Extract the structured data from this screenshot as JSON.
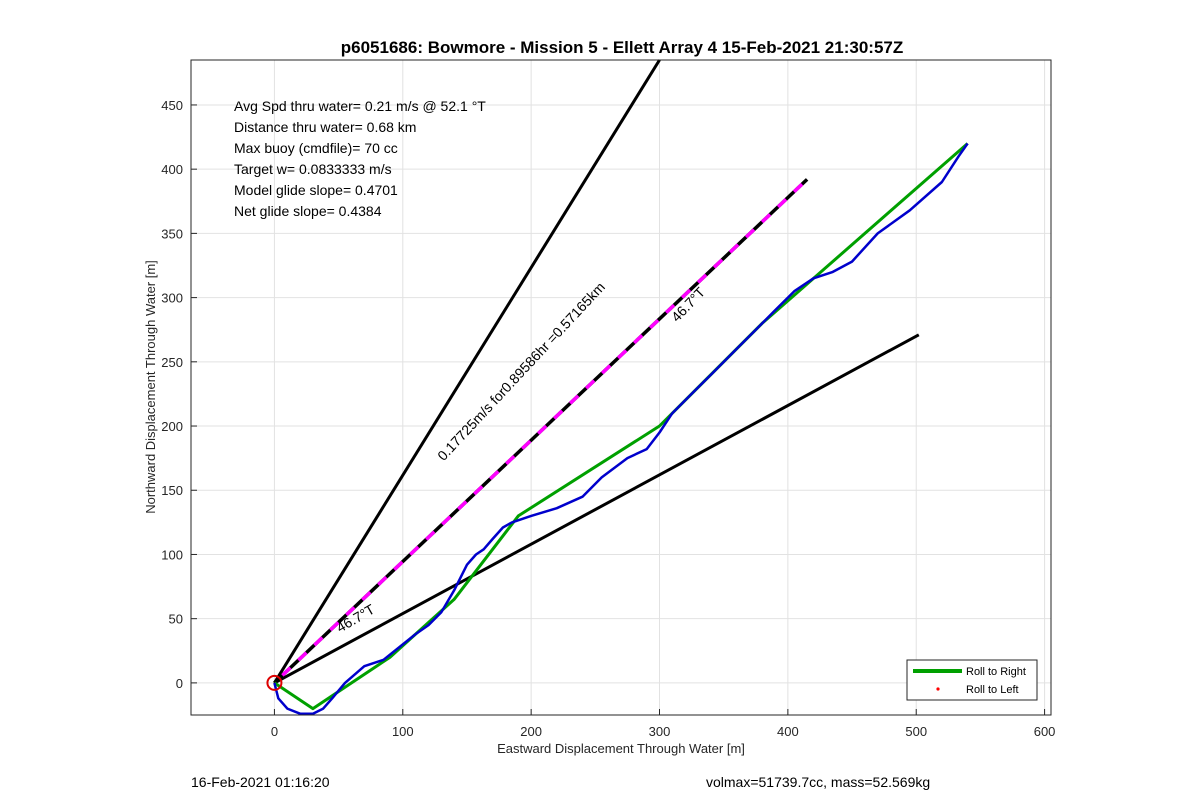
{
  "chart_data": {
    "type": "line",
    "title": "p6051686: Bowmore - Mission 5 - Ellett Array 4 15-Feb-2021 21:30:57Z",
    "xlabel": "Eastward Displacement Through Water [m]",
    "ylabel": "Northward Displacement Through Water [m]",
    "xlim": [
      -65,
      605
    ],
    "ylim": [
      -25,
      485
    ],
    "xticks": [
      0,
      100,
      200,
      300,
      400,
      500,
      600
    ],
    "yticks": [
      0,
      50,
      100,
      150,
      200,
      250,
      300,
      350,
      400,
      450
    ],
    "xtick_labels": [
      "0",
      "100",
      "200",
      "300",
      "400",
      "500",
      "600"
    ],
    "ytick_labels": [
      "0",
      "50",
      "100",
      "150",
      "200",
      "250",
      "300",
      "350",
      "400",
      "450"
    ],
    "grid": true,
    "annotations": [
      "Avg Spd thru water=  0.21 m/s @  52.1 °T",
      "Distance thru water=  0.68 km",
      "Max buoy (cmdfile)= 70 cc",
      "Target w= 0.0833333 m/s",
      "Model glide slope= 0.4701",
      "Net glide slope= 0.4384"
    ],
    "line_labels": {
      "upper_heading": "46.7°T",
      "lower_heading": "46.7°T",
      "current": "0.17725m/s for0.89586hr =0.57165km"
    },
    "series": [
      {
        "name": "Roll to Right",
        "color": "#00a000",
        "x": [
          0,
          30,
          90,
          140,
          190,
          300,
          380,
          540
        ],
        "y": [
          0,
          -20,
          20,
          65,
          130,
          200,
          280,
          420
        ]
      },
      {
        "name": "Roll to Left",
        "color": "#ff0000",
        "x": [],
        "y": []
      },
      {
        "color": "#0000cc",
        "x": [
          0,
          3,
          10,
          20,
          30,
          38,
          45,
          55,
          70,
          85,
          100,
          110,
          120,
          130,
          140,
          150,
          157,
          163,
          170,
          178,
          185,
          200,
          220,
          240,
          255,
          275,
          290,
          300,
          310,
          325,
          340,
          360,
          375,
          390,
          405,
          420,
          435,
          450,
          470,
          495,
          520,
          533,
          540
        ],
        "y": [
          0,
          -12,
          -20,
          -24,
          -24,
          -20,
          -12,
          0,
          13,
          18,
          30,
          38,
          45,
          55,
          72,
          92,
          100,
          104,
          112,
          121,
          125,
          130,
          136,
          145,
          160,
          175,
          182,
          195,
          210,
          225,
          240,
          260,
          275,
          290,
          305,
          315,
          320,
          328,
          350,
          368,
          390,
          410,
          420
        ]
      },
      {
        "color": "#000000",
        "x": [
          0,
          300
        ],
        "y": [
          0,
          485
        ]
      },
      {
        "color": "#000000",
        "x": [
          0,
          502
        ],
        "y": [
          0,
          271
        ]
      },
      {
        "color": "#000000",
        "x": [
          0,
          415
        ],
        "y": [
          0,
          392
        ]
      },
      {
        "color": "#ff00ff",
        "x": [
          0,
          415
        ],
        "y": [
          0,
          392
        ]
      }
    ],
    "legend": {
      "position": "bottom-right",
      "entries": [
        "Roll to Right",
        "Roll to Left"
      ]
    },
    "marker": {
      "type": "circle",
      "color": "#dd0000",
      "x": 0,
      "y": 0
    }
  },
  "footer": {
    "left": "16-Feb-2021 01:16:20",
    "right": "volmax=51739.7cc, mass=52.569kg"
  }
}
